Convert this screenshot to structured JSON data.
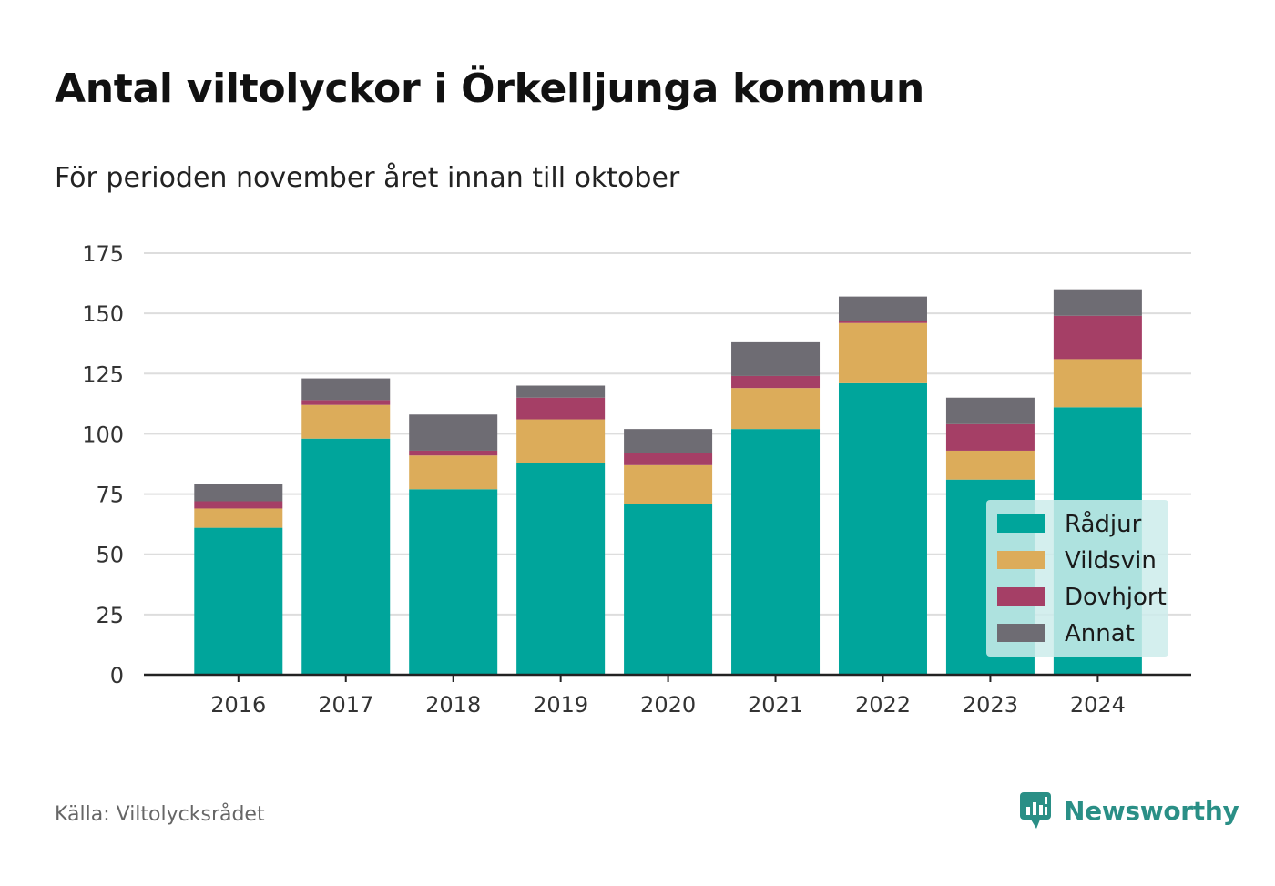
{
  "header": {
    "title": "Antal viltolyckor i Örkelljunga kommun",
    "subtitle": "För perioden november året innan till oktober"
  },
  "footer": {
    "source": "Källa: Viltolycksrådet",
    "brand": "Newsworthy"
  },
  "chart_data": {
    "type": "bar",
    "stacked": true,
    "title": "Antal viltolyckor i Örkelljunga kommun",
    "subtitle": "För perioden november året innan till oktober",
    "xlabel": "",
    "ylabel": "",
    "categories": [
      "2016",
      "2017",
      "2018",
      "2019",
      "2020",
      "2021",
      "2022",
      "2023",
      "2024"
    ],
    "yticks": [
      "0",
      "25",
      "50",
      "75",
      "100",
      "125",
      "150",
      "175"
    ],
    "ylim": [
      0,
      175
    ],
    "grid": true,
    "legend_position": "bottom-right",
    "series": [
      {
        "name": "Rådjur",
        "color": "#00a59b",
        "values": [
          61,
          98,
          77,
          88,
          71,
          102,
          121,
          81,
          111
        ]
      },
      {
        "name": "Vildsvin",
        "color": "#dcac5a",
        "values": [
          8,
          14,
          14,
          18,
          16,
          17,
          25,
          12,
          20
        ]
      },
      {
        "name": "Dovhjort",
        "color": "#a53f66",
        "values": [
          3,
          2,
          2,
          9,
          5,
          5,
          1,
          11,
          18
        ]
      },
      {
        "name": "Annat",
        "color": "#6e6c73",
        "values": [
          7,
          9,
          15,
          5,
          10,
          14,
          10,
          11,
          11
        ]
      }
    ]
  },
  "colors": {
    "brand": "#2a8f86",
    "grid": "#dddddd",
    "axis": "#222222",
    "legend_bg": "#cdeceb"
  },
  "icons": {
    "brand_logo": "chart-bubble-icon"
  }
}
